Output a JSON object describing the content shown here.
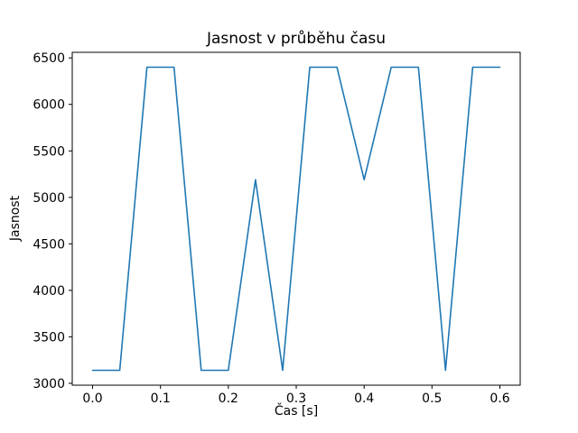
{
  "chart_data": {
    "type": "line",
    "title": "Jasnost v průběhu času",
    "xlabel": "Čas [s]",
    "ylabel": "Jasnost",
    "x": [
      0.0,
      0.04,
      0.08,
      0.12,
      0.16,
      0.2,
      0.24,
      0.28,
      0.32,
      0.36,
      0.4,
      0.44,
      0.48,
      0.52,
      0.56,
      0.6
    ],
    "y": [
      3140,
      3140,
      6400,
      6400,
      3140,
      3140,
      5190,
      3140,
      6400,
      6400,
      5190,
      6400,
      6400,
      3140,
      6400,
      6400
    ],
    "xticks": [
      0.0,
      0.1,
      0.2,
      0.3,
      0.4,
      0.5,
      0.6
    ],
    "yticks": [
      3000,
      3500,
      4000,
      4500,
      5000,
      5500,
      6000,
      6500
    ],
    "xlim": [
      -0.03,
      0.63
    ],
    "ylim": [
      2980,
      6560
    ],
    "line_color": "#1f77b4",
    "grid": false,
    "legend_position": "none"
  }
}
